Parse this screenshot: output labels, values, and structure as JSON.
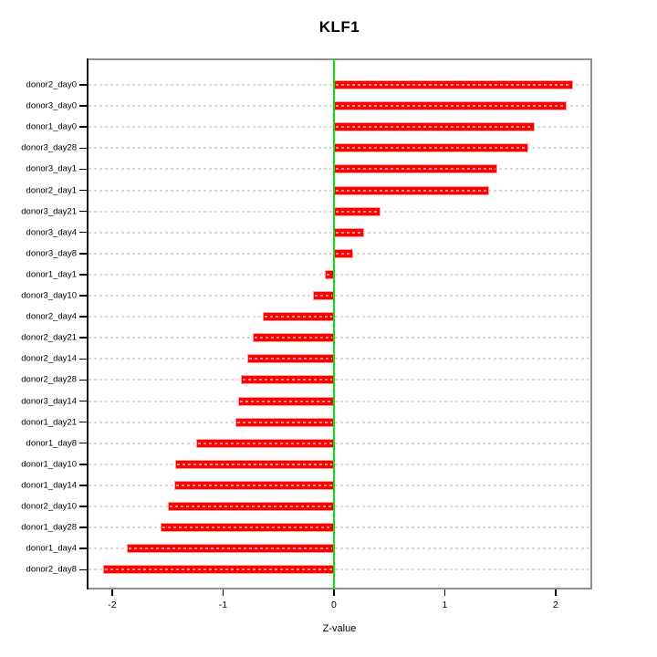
{
  "title": "KLF1",
  "xlabel": "Z-value",
  "colors": {
    "bar": "#ff0000",
    "bar_edge": "#ff9e9e",
    "zero_line": "#00e60a",
    "grid": "#d9d9d9",
    "box_border": "#909090",
    "axis": "#000000",
    "background": "#ffffff"
  },
  "chart_data": {
    "type": "bar",
    "orientation": "horizontal",
    "title": "KLF1",
    "xlabel": "Z-value",
    "ylabel": "",
    "grid": true,
    "legend": false,
    "xlim": [
      -2.23,
      2.33
    ],
    "xticks": [
      -2,
      -1,
      0,
      1,
      2
    ],
    "zero_line": 0,
    "categories": [
      "donor2_day0",
      "donor3_day0",
      "donor1_day0",
      "donor3_day28",
      "donor3_day1",
      "donor2_day1",
      "donor3_day21",
      "donor3_day4",
      "donor3_day8",
      "donor1_day1",
      "donor3_day10",
      "donor2_day4",
      "donor2_day21",
      "donor2_day14",
      "donor2_day28",
      "donor3_day14",
      "donor1_day21",
      "donor1_day8",
      "donor1_day10",
      "donor1_day14",
      "donor2_day10",
      "donor1_day28",
      "donor1_day4",
      "donor2_day8"
    ],
    "values": [
      2.16,
      2.1,
      1.81,
      1.75,
      1.47,
      1.4,
      0.42,
      0.27,
      0.17,
      -0.08,
      -0.19,
      -0.64,
      -0.73,
      -0.78,
      -0.84,
      -0.86,
      -0.89,
      -1.24,
      -1.43,
      -1.44,
      -1.5,
      -1.56,
      -1.87,
      -2.08
    ]
  }
}
